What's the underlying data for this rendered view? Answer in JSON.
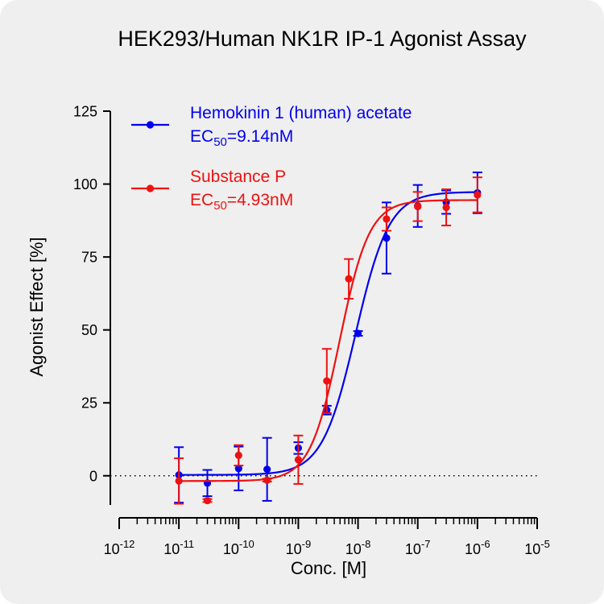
{
  "chart_data": {
    "type": "scatter",
    "title": "HEK293/Human NK1R IP-1 Agonist Assay",
    "xlabel": "Conc. [M]",
    "ylabel": "Agonist Effect [%]",
    "x_scale": "log",
    "xlim": [
      1e-12,
      1e-05
    ],
    "ylim": [
      -10,
      125
    ],
    "x_tick_labels": [
      {
        "base": "10",
        "exp": "-12"
      },
      {
        "base": "10",
        "exp": "-11"
      },
      {
        "base": "10",
        "exp": "-10"
      },
      {
        "base": "10",
        "exp": "-9"
      },
      {
        "base": "10",
        "exp": "-8"
      },
      {
        "base": "10",
        "exp": "-7"
      },
      {
        "base": "10",
        "exp": "-6"
      },
      {
        "base": "10",
        "exp": "-5"
      }
    ],
    "y_tick_labels": [
      "0",
      "25",
      "50",
      "75",
      "100",
      "125"
    ],
    "y_ticks": [
      0,
      25,
      50,
      75,
      100,
      125
    ],
    "reference_line": {
      "y": 0,
      "style": "dotted"
    },
    "legend_position": "top-left",
    "series": [
      {
        "name": "Hemokinin 1 (human) acetate",
        "ec50_prefix": "EC",
        "ec50_subscript": "50",
        "ec50_value": "=9.14nM",
        "color": "#0000ee",
        "ec50": 9.14e-09,
        "bottom": 0.3,
        "top": 97.3,
        "hill": 1.55,
        "points": [
          {
            "x": 1e-11,
            "y": 0.3,
            "err": 9.5
          },
          {
            "x": 3e-11,
            "y": -2.5,
            "err": 4.5
          },
          {
            "x": 1e-10,
            "y": 2.5,
            "err": 7.5
          },
          {
            "x": 3e-10,
            "y": 2.2,
            "err": 10.8
          },
          {
            "x": 1e-09,
            "y": 9.5,
            "err": 2
          },
          {
            "x": 3e-09,
            "y": 22.5,
            "err": 1.5
          },
          {
            "x": 1e-08,
            "y": 48.8,
            "err": 0.8
          },
          {
            "x": 3e-08,
            "y": 81.5,
            "err": 12.2
          },
          {
            "x": 1e-07,
            "y": 92.5,
            "err": 7.2
          },
          {
            "x": 3e-07,
            "y": 93.8,
            "err": 4
          },
          {
            "x": 1e-06,
            "y": 97,
            "err": 7
          }
        ]
      },
      {
        "name": "Substance P",
        "ec50_prefix": "EC",
        "ec50_subscript": "50",
        "ec50_value": "=4.93nM",
        "color": "#ee1111",
        "ec50": 4.93e-09,
        "bottom": -1.8,
        "top": 94.5,
        "hill": 1.75,
        "points": [
          {
            "x": 1e-11,
            "y": -1.8,
            "err": 7.8
          },
          {
            "x": 3e-11,
            "y": -8.5,
            "err": 0.5
          },
          {
            "x": 1e-10,
            "y": 7,
            "err": 3.5
          },
          {
            "x": 3e-10,
            "y": -1.5,
            "err": 0.5
          },
          {
            "x": 1e-09,
            "y": 5.5,
            "err": 8.3
          },
          {
            "x": 3e-09,
            "y": 32.5,
            "err": 11
          },
          {
            "x": 7e-09,
            "y": 67.5,
            "err": 6.8
          },
          {
            "x": 3e-08,
            "y": 88,
            "err": 4
          },
          {
            "x": 1e-07,
            "y": 92.3,
            "err": 5
          },
          {
            "x": 3e-07,
            "y": 92,
            "err": 6.2
          },
          {
            "x": 1e-06,
            "y": 96.3,
            "err": 6
          }
        ]
      }
    ]
  }
}
